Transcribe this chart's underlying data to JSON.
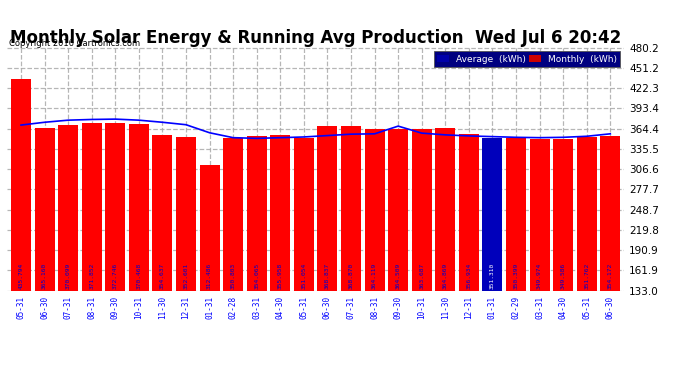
{
  "title": "Monthly Solar Energy & Running Avg Production  Wed Jul 6 20:42",
  "copyright": "Copyright 2016 Cartronics.com",
  "categories": [
    "05-31",
    "06-30",
    "07-31",
    "08-31",
    "09-30",
    "10-31",
    "11-30",
    "12-31",
    "01-31",
    "02-28",
    "03-31",
    "04-30",
    "05-31",
    "06-30",
    "07-31",
    "08-31",
    "09-30",
    "10-31",
    "11-30",
    "12-31",
    "01-31",
    "02-29",
    "03-31",
    "04-30",
    "05-31",
    "06-30"
  ],
  "monthly_values": [
    435.794,
    365.16,
    370.099,
    371.852,
    372.746,
    370.468,
    354.637,
    352.601,
    312.486,
    350.803,
    354.065,
    355.958,
    351.054,
    368.837,
    368.87,
    364.119,
    364.509,
    363.687,
    364.869,
    356.934,
    351.31,
    350.399,
    349.974,
    349.586,
    351.762,
    354.172
  ],
  "average_values": [
    369.5,
    373.5,
    376.5,
    377.5,
    378.0,
    376.5,
    373.5,
    370.0,
    358.5,
    351.5,
    350.5,
    351.5,
    352.5,
    354.5,
    356.5,
    357.0,
    368.0,
    358.0,
    355.5,
    354.0,
    353.0,
    352.0,
    351.5,
    352.0,
    353.5,
    357.0
  ],
  "bar_color": "#FF0000",
  "line_color": "#0000FF",
  "highlight_bar_index": 20,
  "highlight_bar_color": "#0000BB",
  "background_color": "#FFFFFF",
  "plot_bg_color": "#FFFFFF",
  "grid_color": "#AAAAAA",
  "y_min": 133.0,
  "y_max": 480.2,
  "y_ticks": [
    133.0,
    161.9,
    190.9,
    219.8,
    248.7,
    277.7,
    306.6,
    335.5,
    364.4,
    393.4,
    422.3,
    451.2,
    480.2
  ],
  "legend_avg_label": "Average  (kWh)",
  "legend_monthly_label": "Monthly  (kWh)",
  "legend_avg_bg": "#0000AA",
  "legend_monthly_bg": "#CC0000",
  "title_fontsize": 12,
  "bar_label_fontsize": 4.5,
  "ytick_fontsize": 7.5,
  "xtick_fontsize": 5.5
}
